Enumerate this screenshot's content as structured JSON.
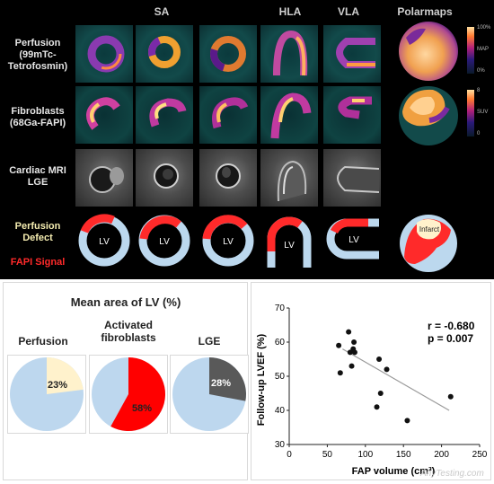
{
  "columns": {
    "sa": "SA",
    "hla": "HLA",
    "vla": "VLA",
    "polar": "Polarmaps"
  },
  "rows": {
    "perfusion": [
      "Perfusion",
      "(99mTc-",
      "Tetrofosmin)"
    ],
    "fibroblasts": [
      "Fibroblasts",
      "(68Ga-FAPI)"
    ],
    "mri": [
      "Cardiac MRI",
      "LGE"
    ],
    "defect": [
      "Perfusion",
      "Defect"
    ],
    "fapi": "FAPI Signal"
  },
  "colorbar_perf": {
    "max": "100%",
    "min": "0%",
    "unit": "MAP"
  },
  "colorbar_fib": {
    "max": "8",
    "min": "0",
    "unit": "SUV"
  },
  "schematic": {
    "lv": "LV",
    "infarct": "Infarct"
  },
  "pies": {
    "title": "Mean area of LV (%)",
    "perfusion": {
      "label": "Perfusion",
      "pct": "23%"
    },
    "fibro": {
      "label1": "Activated",
      "label2": "fibroblasts",
      "pct": "58%"
    },
    "lge": {
      "label": "LGE",
      "pct": "28%"
    }
  },
  "colors": {
    "pie_base": "#bdd7ee",
    "perfusion": "#fff2cc",
    "fibro": "#ff0000",
    "lge": "#595959",
    "fapi_red": "#ff2a2a",
    "defect_blue": "#bcd8ee"
  },
  "chart_data": {
    "type": "scatter",
    "xlabel": "FAP volume (cm³)",
    "ylabel": "Follow-up LVEF (%)",
    "xlim": [
      0,
      250
    ],
    "ylim": [
      30,
      70
    ],
    "xticks": [
      "0",
      "50",
      "100",
      "150",
      "200",
      "250"
    ],
    "yticks": [
      "30",
      "40",
      "50",
      "60",
      "70"
    ],
    "stats": {
      "r": "r = -0.680",
      "p": "p = 0.007"
    },
    "points": [
      {
        "x": 65,
        "y": 59
      },
      {
        "x": 67,
        "y": 51
      },
      {
        "x": 78,
        "y": 63
      },
      {
        "x": 80,
        "y": 57
      },
      {
        "x": 82,
        "y": 53
      },
      {
        "x": 84,
        "y": 58
      },
      {
        "x": 85,
        "y": 60
      },
      {
        "x": 86,
        "y": 57
      },
      {
        "x": 118,
        "y": 55
      },
      {
        "x": 120,
        "y": 45
      },
      {
        "x": 115,
        "y": 41
      },
      {
        "x": 128,
        "y": 52
      },
      {
        "x": 155,
        "y": 37
      },
      {
        "x": 212,
        "y": 44
      }
    ],
    "trend": [
      [
        70,
        58
      ],
      [
        210,
        40
      ]
    ]
  },
  "watermark": "AnyTesting.com"
}
